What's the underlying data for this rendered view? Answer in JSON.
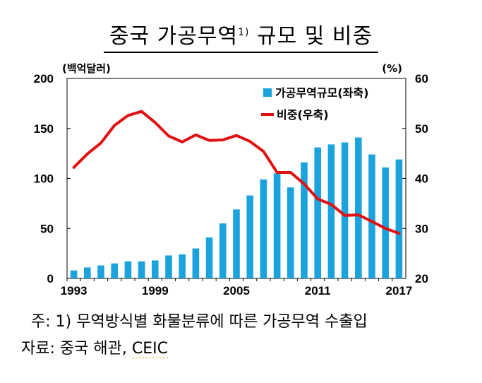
{
  "title": {
    "main": "중국 가공무역",
    "sup": "1)",
    "rest": " 규모 및 비중"
  },
  "footnote": "주: 1) 무역방식별 화물분류에 따른 가공무역 수출입",
  "source": {
    "prefix": "자료: 중국 해관, ",
    "name": "CEIC"
  },
  "colors": {
    "bar": "#1aa3dd",
    "line": "#e01010"
  },
  "chart_data": {
    "type": "bar+line",
    "left_axis": {
      "unit_label": "(백억달러)",
      "ylim": [
        0,
        200
      ],
      "ticks": [
        0,
        50,
        100,
        150,
        200
      ]
    },
    "right_axis": {
      "unit_label": "(%)",
      "ylim": [
        20,
        60
      ],
      "ticks": [
        20,
        30,
        40,
        50,
        60
      ]
    },
    "x_axis": {
      "range": [
        1993,
        2017
      ],
      "tick_labels": [
        "1993",
        "1999",
        "2005",
        "2011",
        "2017"
      ]
    },
    "legend": {
      "position": "top-right",
      "bar_label": "가공무역규모(좌축)",
      "line_label": "비중(우축)"
    },
    "x": [
      1993,
      1994,
      1995,
      1996,
      1997,
      1998,
      1999,
      2000,
      2001,
      2002,
      2003,
      2004,
      2005,
      2006,
      2007,
      2008,
      2009,
      2010,
      2011,
      2012,
      2013,
      2014,
      2015,
      2016,
      2017
    ],
    "series": [
      {
        "name": "가공무역규모(좌축)",
        "kind": "bar",
        "axis": "left",
        "values": [
          8,
          11,
          13,
          15,
          17,
          17,
          18,
          23,
          24,
          30,
          41,
          55,
          69,
          83,
          99,
          105,
          91,
          116,
          131,
          134,
          136,
          141,
          124,
          111,
          119
        ]
      },
      {
        "name": "비중(우축)",
        "kind": "line",
        "axis": "right",
        "values": [
          42.2,
          44.9,
          47.1,
          50.6,
          52.6,
          53.4,
          51.2,
          48.5,
          47.3,
          48.7,
          47.6,
          47.7,
          48.6,
          47.4,
          45.4,
          41.2,
          41.2,
          38.9,
          35.9,
          34.8,
          32.6,
          32.7,
          31.4,
          30.0,
          29.0
        ]
      }
    ]
  }
}
